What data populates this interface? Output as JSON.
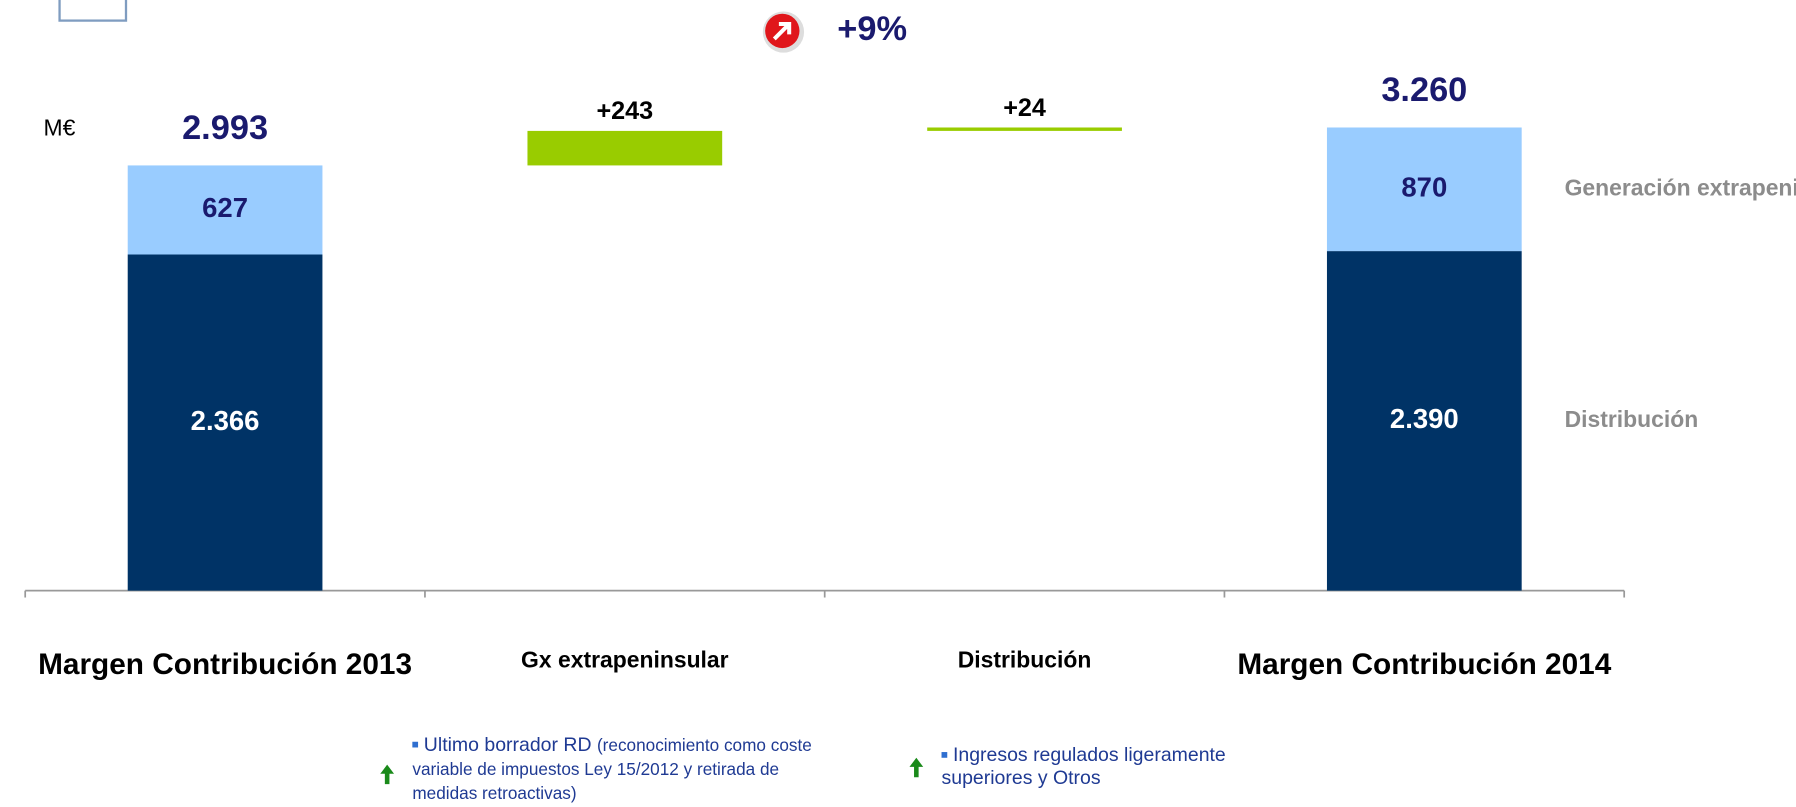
{
  "chart_data": {
    "type": "waterfall",
    "title": "+9%",
    "unit_label": "M€",
    "categories": [
      "Margen Contribución 2013",
      "Gx extrapeninsular",
      "Distribución",
      "Margen Contribución 2014"
    ],
    "series": [
      {
        "name": "Distribución",
        "color": "#003366",
        "values": [
          2366,
          null,
          null,
          2390
        ],
        "value_labels": [
          "2.366",
          null,
          null,
          "2.390"
        ]
      },
      {
        "name": "Generación extrapeninsular",
        "color": "#99ccff",
        "values": [
          627,
          null,
          null,
          870
        ],
        "value_labels": [
          "627",
          null,
          null,
          "870"
        ]
      }
    ],
    "deltas": {
      "color": "#99cc00",
      "values": [
        null,
        243,
        24,
        null
      ],
      "value_labels": [
        null,
        "+243",
        "+24",
        null
      ]
    },
    "totals": [
      2993,
      null,
      null,
      3260
    ],
    "total_labels": [
      "2.993",
      null,
      null,
      "3.260"
    ],
    "ylim": [
      0,
      3400
    ],
    "notes": [
      {
        "head": "Ultimo borrador RD",
        "text": "(reconocimiento como coste variable de impuestos Ley 15/2012 y retirada de medidas retroactivas)"
      },
      {
        "head": "Ingresos regulados",
        "text": "ligeramente superiores y Otros"
      }
    ]
  }
}
